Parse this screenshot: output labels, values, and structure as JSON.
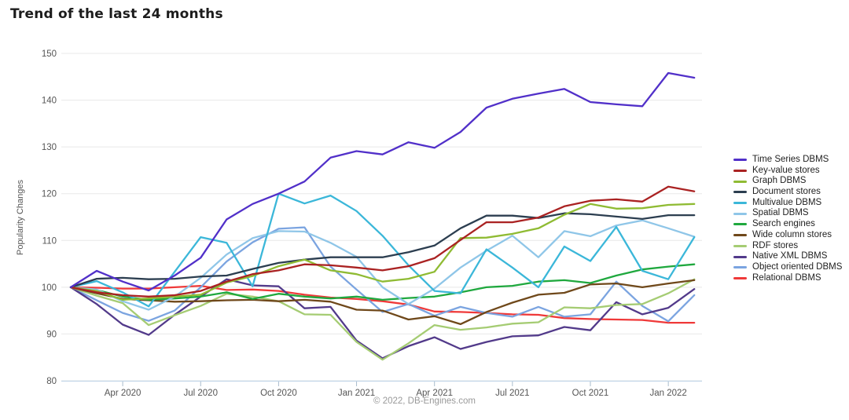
{
  "page": {
    "title": "Trend of the last 24 months",
    "footer_credit": "© 2022, DB-Engines.com"
  },
  "chart_data": {
    "type": "line",
    "title": "Trend of the last 24 months",
    "xlabel": "",
    "ylabel": "Popularity Changes",
    "ylim": [
      80,
      150
    ],
    "y_ticks": [
      80,
      90,
      100,
      110,
      120,
      130,
      140,
      150
    ],
    "grid": true,
    "legend_position": "right",
    "x": [
      "Feb 2020",
      "Mar 2020",
      "Apr 2020",
      "May 2020",
      "Jun 2020",
      "Jul 2020",
      "Aug 2020",
      "Sep 2020",
      "Oct 2020",
      "Nov 2020",
      "Dec 2020",
      "Jan 2021",
      "Feb 2021",
      "Mar 2021",
      "Apr 2021",
      "May 2021",
      "Jun 2021",
      "Jul 2021",
      "Aug 2021",
      "Sep 2021",
      "Oct 2021",
      "Nov 2021",
      "Dec 2021",
      "Jan 2022",
      "Feb 2022"
    ],
    "x_tick_indices": [
      2,
      5,
      8,
      11,
      14,
      17,
      20,
      23
    ],
    "x_tick_labels": [
      "Apr 2020",
      "Jul 2020",
      "Oct 2020",
      "Jan 2021",
      "Apr 2021",
      "Jul 2021",
      "Oct 2021",
      "Jan 2022"
    ],
    "series": [
      {
        "name": "Time Series DBMS",
        "color": "#5130c9",
        "values": [
          100,
          103.5,
          101.2,
          99.3,
          102.5,
          106.3,
          114.5,
          117.8,
          120,
          122.6,
          127.7,
          129.1,
          128.4,
          131,
          129.8,
          133.2,
          138.4,
          140.3,
          141.4,
          142.4,
          139.6,
          139.1,
          138.7,
          145.8,
          144.8
        ]
      },
      {
        "name": "Key-value stores",
        "color": "#aa2222",
        "values": [
          100,
          98.9,
          98.3,
          98,
          98.3,
          99.2,
          101.2,
          102.8,
          103.6,
          104.9,
          104.7,
          104.2,
          103.6,
          104.5,
          106.2,
          110.1,
          113.9,
          113.9,
          114.9,
          117.3,
          118.5,
          118.8,
          118.3,
          121.5,
          120.5
        ]
      },
      {
        "name": "Graph DBMS",
        "color": "#8fbb33",
        "values": [
          100,
          99.2,
          97.3,
          97.6,
          98,
          98.4,
          101,
          102.4,
          104.5,
          105.9,
          103.6,
          102.8,
          101.2,
          101.8,
          103.3,
          110.5,
          110.6,
          111.4,
          112.6,
          115.5,
          117.8,
          116.8,
          116.9,
          117.6,
          117.8
        ]
      },
      {
        "name": "Document stores",
        "color": "#2c3e50",
        "values": [
          100,
          101.8,
          102,
          101.7,
          101.8,
          102.3,
          102.5,
          103.9,
          105.2,
          105.9,
          106.4,
          106.4,
          106.4,
          107.5,
          108.9,
          112.6,
          115.3,
          115.3,
          114.8,
          115.8,
          115.6,
          115.1,
          114.6,
          115.4,
          115.4
        ]
      },
      {
        "name": "Multivalue DBMS",
        "color": "#3bb7d9",
        "values": [
          100,
          101.3,
          98.9,
          95.9,
          103.3,
          110.7,
          109.5,
          100.2,
          120,
          117.9,
          119.6,
          116.3,
          111,
          104.7,
          99.2,
          98.7,
          108.1,
          104.2,
          100,
          108.7,
          105.6,
          112.9,
          103.5,
          101.7,
          110.7
        ]
      },
      {
        "name": "Spatial DBMS",
        "color": "#8fc6e8",
        "values": [
          100,
          99.5,
          97,
          95.2,
          98,
          102,
          107,
          110.5,
          112,
          111.9,
          109.5,
          106.5,
          100,
          96.4,
          99.7,
          104.2,
          107.8,
          111,
          106.4,
          112,
          110.9,
          113.2,
          114.3,
          112.6,
          110.8
        ]
      },
      {
        "name": "Search engines",
        "color": "#1fa83e",
        "values": [
          100,
          99.4,
          98,
          97.3,
          97.6,
          98,
          98.9,
          97.5,
          98.6,
          98,
          97.6,
          98,
          97.3,
          97.7,
          98,
          98.9,
          100,
          100.3,
          101.2,
          101.5,
          100.9,
          102.5,
          103.8,
          104.4,
          104.9
        ]
      },
      {
        "name": "Wide column stores",
        "color": "#6f481a",
        "values": [
          100,
          98.7,
          97.5,
          97.2,
          96.9,
          97,
          97.2,
          97.3,
          97,
          97.3,
          96.9,
          95.2,
          95,
          93.1,
          93.8,
          92.1,
          94.7,
          96.7,
          98.4,
          98.8,
          100.6,
          100.8,
          100,
          100.8,
          101.5
        ]
      },
      {
        "name": "RDF stores",
        "color": "#a5cc73",
        "values": [
          100,
          98.2,
          96.6,
          91.9,
          94,
          96,
          98.6,
          98,
          97,
          94.2,
          94.1,
          88.3,
          84.5,
          88,
          91.9,
          90.9,
          91.4,
          92.2,
          92.5,
          95.7,
          95.5,
          96.2,
          96.4,
          98.7,
          101.7
        ]
      },
      {
        "name": "Native XML DBMS",
        "color": "#523a8a",
        "values": [
          100,
          96.4,
          92,
          89.8,
          94.1,
          98,
          101.7,
          100.4,
          100.2,
          95.5,
          95.8,
          88.6,
          84.8,
          87.4,
          89.3,
          86.8,
          88.3,
          89.5,
          89.7,
          91.5,
          90.8,
          96.8,
          94.2,
          95.6,
          99.6
        ]
      },
      {
        "name": "Object oriented DBMS",
        "color": "#7ba4e0",
        "values": [
          100,
          97.2,
          94.5,
          92.8,
          95,
          100,
          105.5,
          109.6,
          112.5,
          112.8,
          104.4,
          99.5,
          94.7,
          96.4,
          93.9,
          95.8,
          94.5,
          93.7,
          95.8,
          93.7,
          94.2,
          101.2,
          96,
          92.7,
          98.3
        ]
      },
      {
        "name": "Relational DBMS",
        "color": "#ef3939",
        "values": [
          100,
          99.9,
          99.7,
          99.7,
          100,
          100.3,
          99.4,
          99.5,
          99.2,
          98.4,
          97.8,
          97.5,
          97,
          96.3,
          94.8,
          94.7,
          94.5,
          94.2,
          94.1,
          93.4,
          93.2,
          93.1,
          93,
          92.4,
          92.4
        ]
      }
    ],
    "style": {
      "grid_color": "#e8e8e8",
      "axis_line_color": "#c3d6e8",
      "tick_label_color": "#555555",
      "line_width": 2.3
    }
  }
}
